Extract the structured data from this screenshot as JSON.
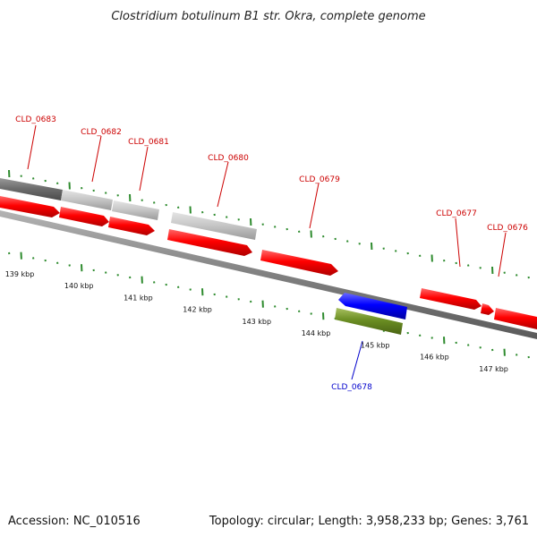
{
  "title": "Clostridium botulinum B1 str. Okra, complete genome",
  "footer": {
    "accession": "Accession: NC_010516",
    "summary": "Topology: circular; Length: 3,958,233 bp; Genes: 3,761"
  },
  "colors": {
    "forward_gene": "#ff0000",
    "reverse_gene": "#0000ff",
    "reverse_other": "#6b8e23",
    "gray_feature": "#c8c8c8",
    "dark_feature": "#707070",
    "tick": "#2e8b2e",
    "backbone": "#808080",
    "label_red": "#cc0000",
    "label_blue": "#0000cc"
  },
  "scale_ticks": [
    {
      "label": "139 kbp"
    },
    {
      "label": "140 kbp"
    },
    {
      "label": "141 kbp"
    },
    {
      "label": "142 kbp"
    },
    {
      "label": "143 kbp"
    },
    {
      "label": "144 kbp"
    },
    {
      "label": "145 kbp"
    },
    {
      "label": "146 kbp"
    },
    {
      "label": "147 kbp"
    }
  ],
  "gene_labels": [
    {
      "name": "CLD_0683",
      "color": "red"
    },
    {
      "name": "CLD_0682",
      "color": "red"
    },
    {
      "name": "CLD_0681",
      "color": "red"
    },
    {
      "name": "CLD_0680",
      "color": "red"
    },
    {
      "name": "CLD_0679",
      "color": "red"
    },
    {
      "name": "CLD_0677",
      "color": "red"
    },
    {
      "name": "CLD_0676",
      "color": "red"
    },
    {
      "name": "CLD_0678",
      "color": "blue"
    }
  ]
}
